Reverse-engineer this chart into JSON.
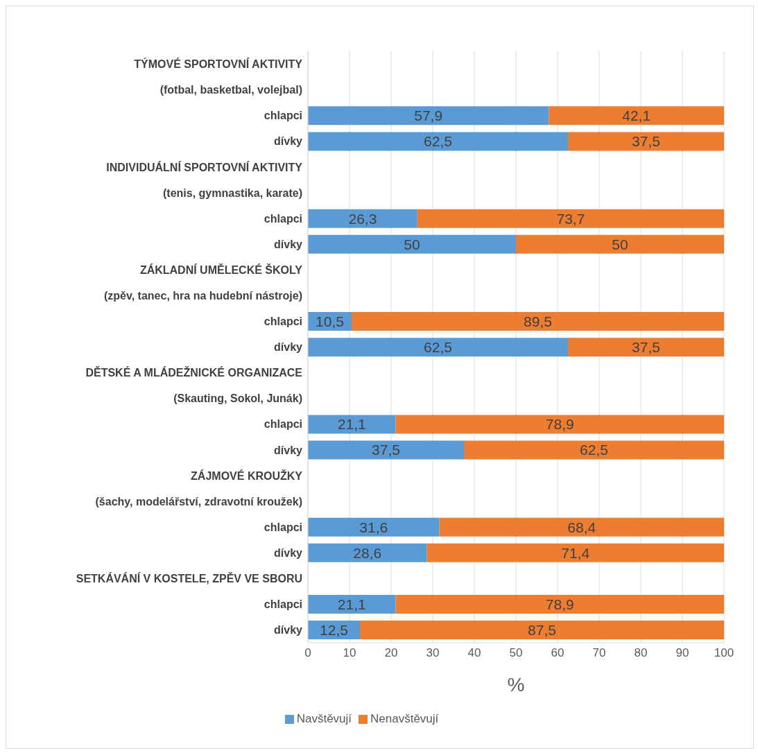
{
  "chart_data": {
    "type": "bar",
    "orientation": "horizontal",
    "stacked": true,
    "xlabel": "%",
    "categories": [
      "TÝMOVÉ SPORTOVNÍ AKTIVITY",
      "(fotbal, basketbal, volejbal)",
      "chlapci",
      "dívky",
      "INDIVIDUÁLNÍ SPORTOVNÍ AKTIVITY",
      "(tenis, gymnastika, karate)",
      "chlapci",
      "dívky",
      "ZÁKLADNÍ UMĚLECKÉ ŠKOLY",
      "(zpěv, tanec, hra na hudební nástroje)",
      "chlapci",
      "dívky",
      "DĚTSKÉ A MLÁDEŽNICKÉ ORGANIZACE",
      "(Skauting, Sokol, Junák)",
      "chlapci",
      "dívky",
      "ZÁJMOVÉ KROUŽKY",
      "(šachy, modelářství, zdravotní kroužek)",
      "chlapci",
      "dívky",
      "SETKÁVÁNÍ V KOSTELE, ZPĚV VE SBORU",
      "chlapci",
      "dívky"
    ],
    "series": [
      {
        "name": "Navštěvují",
        "color": "#5b9bd5",
        "values": [
          null,
          null,
          57.9,
          62.5,
          null,
          null,
          26.3,
          50,
          null,
          null,
          10.5,
          62.5,
          null,
          null,
          21.1,
          37.5,
          null,
          null,
          31.6,
          28.6,
          null,
          21.1,
          12.5
        ],
        "value_labels": [
          null,
          null,
          "57,9",
          "62,5",
          null,
          null,
          "26,3",
          "50",
          null,
          null,
          "10,5",
          "62,5",
          null,
          null,
          "21,1",
          "37,5",
          null,
          null,
          "31,6",
          "28,6",
          null,
          "21,1",
          "12,5"
        ]
      },
      {
        "name": "Nenavštěvují",
        "color": "#ed7d31",
        "values": [
          null,
          null,
          42.1,
          37.5,
          null,
          null,
          73.7,
          50,
          null,
          null,
          89.5,
          37.5,
          null,
          null,
          78.9,
          62.5,
          null,
          null,
          68.4,
          71.4,
          null,
          78.9,
          87.5
        ],
        "value_labels": [
          null,
          null,
          "42,1",
          "37,5",
          null,
          null,
          "73,7",
          "50",
          null,
          null,
          "89,5",
          "37,5",
          null,
          null,
          "78,9",
          "62,5",
          null,
          null,
          "68,4",
          "71,4",
          null,
          "78,9",
          "87,5"
        ]
      }
    ],
    "xlim": [
      0,
      100
    ],
    "xticks": [
      0,
      10,
      20,
      30,
      40,
      50,
      60,
      70,
      80,
      90,
      100
    ],
    "grid": "x",
    "legend": "bottom"
  }
}
